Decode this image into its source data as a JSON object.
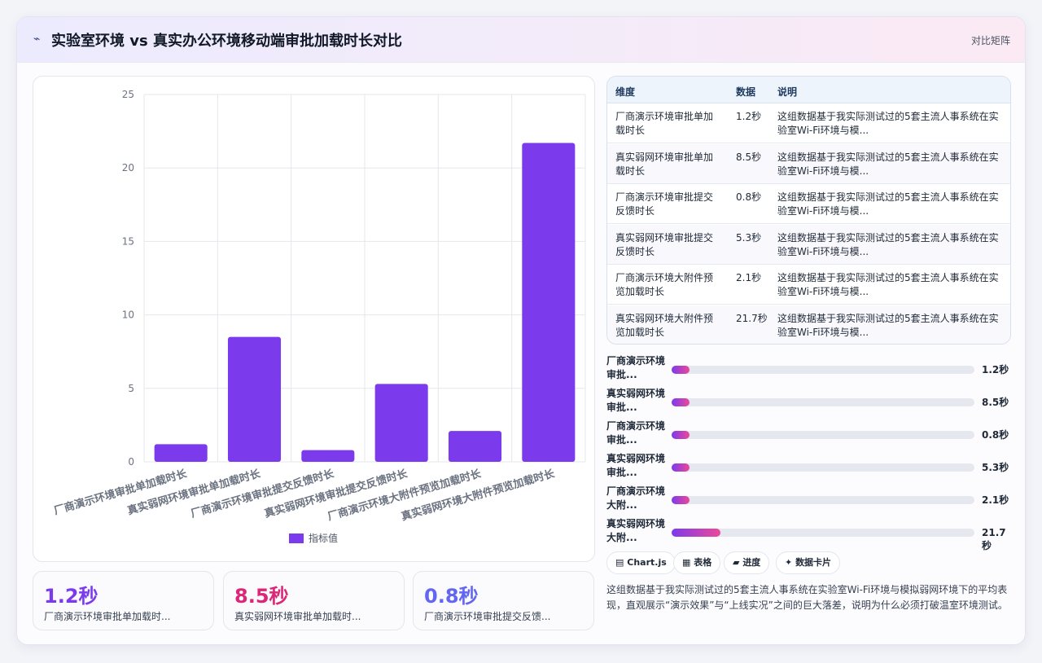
{
  "header": {
    "icon": "chart-icon",
    "title": "实验室环境 vs 真实办公环境移动端审批加载时长对比",
    "tag": "对比矩阵"
  },
  "chart_data": {
    "type": "bar",
    "categories": [
      "厂商演示环境审批单加载时长",
      "真实弱网环境审批单加载时长",
      "厂商演示环境审批提交反馈时长",
      "真实弱网环境审批提交反馈时长",
      "厂商演示环境大附件预览加载时长",
      "真实弱网环境大附件预览加载时长"
    ],
    "series": [
      {
        "name": "指标值",
        "values": [
          1.2,
          8.5,
          0.8,
          5.3,
          2.1,
          21.7
        ],
        "color": "#7c3aed"
      }
    ],
    "ylim": [
      0,
      25
    ],
    "yticks": [
      0,
      5,
      10,
      15,
      20,
      25
    ],
    "grid": true,
    "legend": "bottom"
  },
  "kpis": [
    {
      "value": "1.2秒",
      "label": "厂商演示环境审批单加载时...",
      "color": "#7c3aed"
    },
    {
      "value": "8.5秒",
      "label": "真实弱网环境审批单加载时...",
      "color": "#db2777"
    },
    {
      "value": "0.8秒",
      "label": "厂商演示环境审批提交反馈...",
      "color": "#6366f1"
    }
  ],
  "table": {
    "headers": [
      "维度",
      "数据",
      "说明"
    ],
    "rows": [
      {
        "dim": "厂商演示环境审批单加载时长",
        "num": "1.2秒",
        "desc": "这组数据基于我实际测试过的5套主流人事系统在实验室Wi-Fi环境与模..."
      },
      {
        "dim": "真实弱网环境审批单加载时长",
        "num": "8.5秒",
        "desc": "这组数据基于我实际测试过的5套主流人事系统在实验室Wi-Fi环境与模..."
      },
      {
        "dim": "厂商演示环境审批提交反馈时长",
        "num": "0.8秒",
        "desc": "这组数据基于我实际测试过的5套主流人事系统在实验室Wi-Fi环境与模..."
      },
      {
        "dim": "真实弱网环境审批提交反馈时长",
        "num": "5.3秒",
        "desc": "这组数据基于我实际测试过的5套主流人事系统在实验室Wi-Fi环境与模..."
      },
      {
        "dim": "厂商演示环境大附件预览加载时长",
        "num": "2.1秒",
        "desc": "这组数据基于我实际测试过的5套主流人事系统在实验室Wi-Fi环境与模..."
      },
      {
        "dim": "真实弱网环境大附件预览加载时长",
        "num": "21.7秒",
        "desc": "这组数据基于我实际测试过的5套主流人事系统在实验室Wi-Fi环境与模..."
      }
    ]
  },
  "progress": [
    {
      "label": "厂商演示环境审批...",
      "value": "1.2秒",
      "fraction": 0.06
    },
    {
      "label": "真实弱网环境审批...",
      "value": "8.5秒",
      "fraction": 0.06
    },
    {
      "label": "厂商演示环境审批...",
      "value": "0.8秒",
      "fraction": 0.06
    },
    {
      "label": "真实弱网环境审批...",
      "value": "5.3秒",
      "fraction": 0.06
    },
    {
      "label": "厂商演示环境大附...",
      "value": "2.1秒",
      "fraction": 0.06
    },
    {
      "label": "真实弱网环境大附...",
      "value": "21.7秒",
      "fraction": 0.16
    }
  ],
  "buttons": [
    {
      "icon": "▤",
      "label": "Chart.js"
    },
    {
      "icon": "▦",
      "label": "表格"
    },
    {
      "icon": "▰",
      "label": "进度"
    },
    {
      "icon": "✦",
      "label": "数据卡片"
    }
  ],
  "summary": "这组数据基于我实际测试过的5套主流人事系统在实验室Wi-Fi环境与模拟弱网环境下的平均表现，直观展示“演示效果”与“上线实况”之间的巨大落差，说明为什么必须打破温室环境测试。"
}
